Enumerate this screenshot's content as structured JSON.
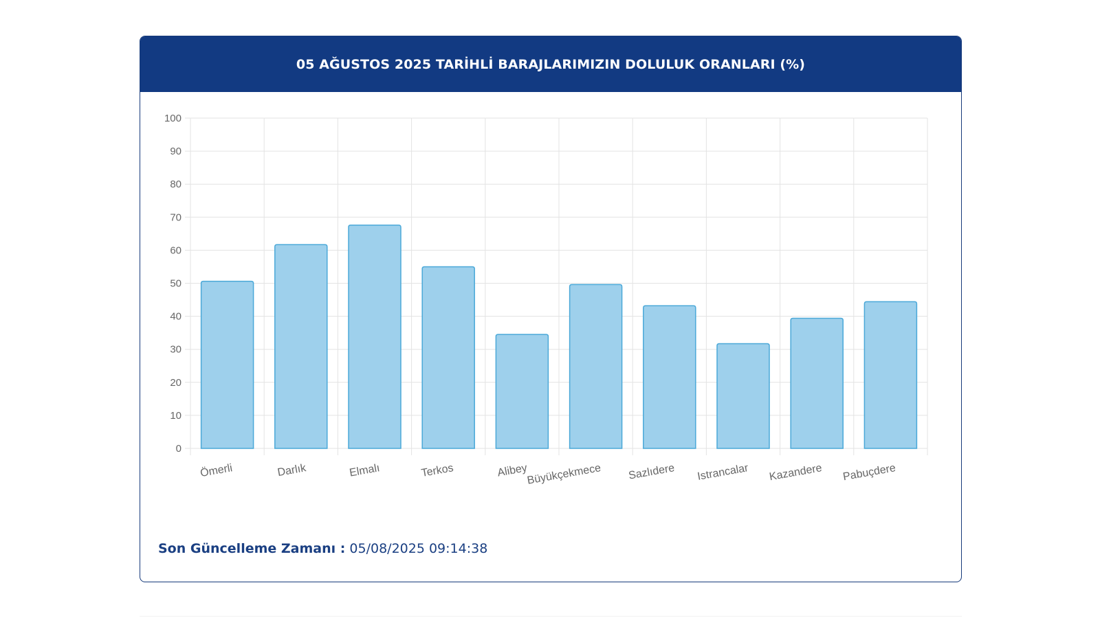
{
  "header": {
    "title": "05 AĞUSTOS 2025 TARİHLİ BARAJLARIMIZIN DOLULUK ORANLARI (%)"
  },
  "footer": {
    "label": "Son Güncelleme Zamanı :",
    "value": "05/08/2025 09:14:38"
  },
  "colors": {
    "header_bg": "#123a82",
    "bar_fill": "#9ed0ec",
    "bar_stroke": "#4aa8d8",
    "grid": "#e3e3e3"
  },
  "chart_data": {
    "type": "bar",
    "categories": [
      "Ömerli",
      "Darlık",
      "Elmalı",
      "Terkos",
      "Alibey",
      "Büyükçekmece",
      "Sazlıdere",
      "Istrancalar",
      "Kazandere",
      "Pabuçdere"
    ],
    "values": [
      50.6,
      61.7,
      67.6,
      55.0,
      34.5,
      49.6,
      43.2,
      31.7,
      39.4,
      44.4
    ],
    "ylim": [
      0,
      100
    ],
    "yticks": [
      0,
      10,
      20,
      30,
      40,
      50,
      60,
      70,
      80,
      90,
      100
    ],
    "grid": true,
    "legend": "none",
    "title": "",
    "xlabel": "",
    "ylabel": ""
  }
}
